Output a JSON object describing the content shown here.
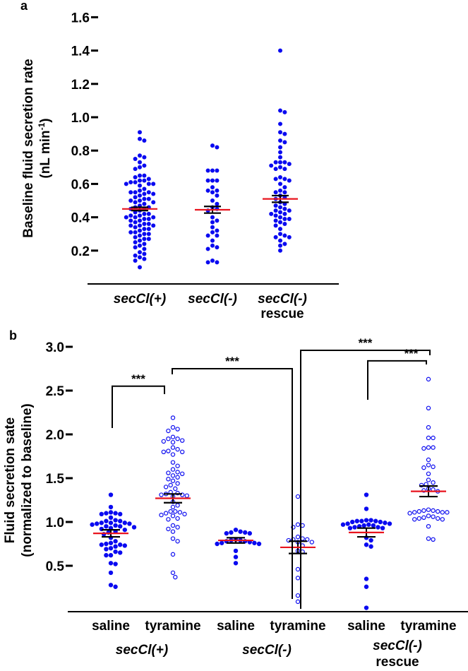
{
  "chart_data": [
    {
      "panel": "a",
      "type": "scatter",
      "subtype": "dot-plot (beeswarm) with mean and SEM",
      "title": "",
      "ylabel_line1": "Baseline fluid secretion rate",
      "ylabel_line2": "(nL min",
      "ylabel_sup": "-1",
      "ylabel_close": ")",
      "ylim": [
        0,
        1.6
      ],
      "yticks": [
        0.2,
        0.4,
        0.6,
        0.8,
        1.0,
        1.2,
        1.4,
        1.6
      ],
      "ytick_labels": [
        "0.2",
        "0.4",
        "0.6",
        "0.8",
        "1.0",
        "1.2",
        "1.4",
        "1.6"
      ],
      "grid": false,
      "marker_color": "#0a0af0",
      "mean_color": "#e8141e",
      "sem_color": "#000000",
      "groups": [
        {
          "label": "secCl(+)",
          "label_line2": "",
          "marker": "filled",
          "mean": 0.45,
          "sem": 0.01,
          "values": [
            0.91,
            0.87,
            0.86,
            0.77,
            0.76,
            0.75,
            0.73,
            0.71,
            0.7,
            0.69,
            0.65,
            0.65,
            0.64,
            0.63,
            0.62,
            0.62,
            0.61,
            0.61,
            0.6,
            0.6,
            0.6,
            0.59,
            0.57,
            0.56,
            0.55,
            0.55,
            0.55,
            0.54,
            0.54,
            0.53,
            0.52,
            0.51,
            0.51,
            0.5,
            0.5,
            0.49,
            0.49,
            0.48,
            0.47,
            0.46,
            0.46,
            0.45,
            0.45,
            0.44,
            0.43,
            0.42,
            0.42,
            0.41,
            0.41,
            0.4,
            0.4,
            0.4,
            0.39,
            0.39,
            0.38,
            0.38,
            0.37,
            0.36,
            0.36,
            0.35,
            0.35,
            0.35,
            0.34,
            0.33,
            0.33,
            0.32,
            0.31,
            0.31,
            0.3,
            0.3,
            0.29,
            0.28,
            0.27,
            0.27,
            0.26,
            0.25,
            0.24,
            0.23,
            0.22,
            0.21,
            0.19,
            0.18,
            0.17,
            0.16,
            0.15,
            0.14,
            0.1
          ]
        },
        {
          "label": "secCl(-)",
          "label_line2": "",
          "marker": "filled",
          "mean": 0.445,
          "sem": 0.02,
          "values": [
            0.83,
            0.82,
            0.68,
            0.68,
            0.68,
            0.62,
            0.62,
            0.62,
            0.58,
            0.56,
            0.56,
            0.55,
            0.53,
            0.5,
            0.48,
            0.45,
            0.46,
            0.44,
            0.4,
            0.38,
            0.37,
            0.34,
            0.32,
            0.31,
            0.29,
            0.29,
            0.26,
            0.23,
            0.22,
            0.21,
            0.14,
            0.13,
            0.13
          ]
        },
        {
          "label": "secCl(-)",
          "label_line2": "rescue",
          "marker": "filled",
          "mean": 0.51,
          "sem": 0.02,
          "values": [
            1.4,
            1.04,
            1.03,
            0.96,
            0.91,
            0.9,
            0.86,
            0.85,
            0.82,
            0.79,
            0.76,
            0.73,
            0.73,
            0.73,
            0.72,
            0.71,
            0.7,
            0.69,
            0.69,
            0.64,
            0.63,
            0.63,
            0.62,
            0.6,
            0.58,
            0.56,
            0.55,
            0.55,
            0.53,
            0.52,
            0.51,
            0.49,
            0.48,
            0.47,
            0.46,
            0.45,
            0.44,
            0.44,
            0.43,
            0.42,
            0.42,
            0.41,
            0.4,
            0.39,
            0.39,
            0.38,
            0.37,
            0.36,
            0.35,
            0.33,
            0.3,
            0.29,
            0.28,
            0.28,
            0.26,
            0.24,
            0.23,
            0.2
          ]
        }
      ]
    },
    {
      "panel": "b",
      "type": "scatter",
      "subtype": "dot-plot (beeswarm) with mean and SEM",
      "title": "",
      "ylabel_line1": "Fluid secretion sate",
      "ylabel_line2": "(normalized to baseline)",
      "ylim": [
        0,
        3.0
      ],
      "yticks": [
        0.5,
        1.0,
        1.5,
        2.0,
        2.5,
        3.0
      ],
      "ytick_labels": [
        "0.5",
        "1.0",
        "1.5",
        "2.0",
        "2.5",
        "3.0"
      ],
      "grid": false,
      "marker_color": "#0a0af0",
      "mean_color": "#e8141e",
      "sem_color": "#000000",
      "groups": [
        {
          "label": "saline",
          "genotype": "secCl(+)",
          "marker": "filled",
          "mean": 0.87,
          "sem": 0.04,
          "values": [
            1.31,
            1.17,
            1.11,
            1.1,
            1.09,
            1.09,
            1.1,
            1.05,
            1.02,
            1.01,
            1.01,
            0.99,
            0.99,
            0.99,
            0.98,
            0.98,
            0.97,
            0.96,
            0.95,
            0.95,
            0.94,
            0.93,
            0.92,
            0.91,
            0.89,
            0.88,
            0.86,
            0.82,
            0.78,
            0.76,
            0.75,
            0.74,
            0.74,
            0.73,
            0.72,
            0.7,
            0.69,
            0.66,
            0.65,
            0.62,
            0.62,
            0.53,
            0.52,
            0.42,
            0.28,
            0.26
          ]
        },
        {
          "label": "tyramine",
          "genotype": "secCl(+)",
          "marker": "open",
          "mean": 1.27,
          "sem": 0.05,
          "values": [
            2.19,
            2.08,
            2.06,
            2.04,
            1.97,
            1.95,
            1.95,
            1.93,
            1.92,
            1.91,
            1.85,
            1.83,
            1.81,
            1.8,
            1.8,
            1.77,
            1.68,
            1.64,
            1.6,
            1.57,
            1.56,
            1.55,
            1.53,
            1.51,
            1.49,
            1.47,
            1.44,
            1.42,
            1.4,
            1.38,
            1.34,
            1.33,
            1.32,
            1.31,
            1.31,
            1.3,
            1.29,
            1.23,
            1.19,
            1.17,
            1.12,
            1.12,
            1.11,
            1.1,
            1.09,
            1.08,
            1.07,
            1.04,
            1.03,
            0.96,
            0.94,
            0.92,
            0.89,
            0.81,
            0.78,
            0.63,
            0.42,
            0.37
          ]
        },
        {
          "label": "saline",
          "genotype": "secCl(-)",
          "marker": "filled",
          "mean": 0.79,
          "sem": 0.03,
          "values": [
            0.91,
            0.89,
            0.88,
            0.88,
            0.87,
            0.87,
            0.8,
            0.79,
            0.79,
            0.78,
            0.78,
            0.77,
            0.76,
            0.76,
            0.75,
            0.75,
            0.67,
            0.6,
            0.53
          ]
        },
        {
          "label": "tyramine",
          "genotype": "secCl(-)",
          "marker": "open",
          "mean": 0.71,
          "sem": 0.07,
          "values": [
            1.29,
            0.97,
            0.96,
            0.94,
            0.83,
            0.81,
            0.8,
            0.8,
            0.79,
            0.77,
            0.77,
            0.73,
            0.67,
            0.66,
            0.46,
            0.36,
            0.16,
            0.09
          ]
        },
        {
          "label": "saline",
          "genotype": "secCl(-) rescue",
          "marker": "filled",
          "mean": 0.88,
          "sem": 0.05,
          "values": [
            1.31,
            1.15,
            1.02,
            1.02,
            1.01,
            1.01,
            1.01,
            1.0,
            1.0,
            0.99,
            0.98,
            0.98,
            0.97,
            0.97,
            0.96,
            0.96,
            0.95,
            0.94,
            0.94,
            0.93,
            0.93,
            0.82,
            0.79,
            0.74,
            0.72,
            0.35,
            0.26,
            0.02
          ]
        },
        {
          "label": "tyramine",
          "genotype": "secCl(-) rescue",
          "marker": "open",
          "mean": 1.35,
          "sem": 0.06,
          "values": [
            2.63,
            2.3,
            2.08,
            1.96,
            1.96,
            1.85,
            1.84,
            1.85,
            1.71,
            1.65,
            1.63,
            1.62,
            1.55,
            1.48,
            1.45,
            1.43,
            1.42,
            1.38,
            1.37,
            1.36,
            1.35,
            1.14,
            1.13,
            1.13,
            1.12,
            1.12,
            1.11,
            1.1,
            1.11,
            1.11,
            1.06,
            1.04,
            1.04,
            1.03,
            1.03,
            1.05,
            1.07,
            0.95,
            0.81,
            0.8
          ]
        }
      ],
      "genotype_labels": [
        {
          "line1": "secCl(+)",
          "line2": ""
        },
        {
          "line1": "secCl(-)",
          "line2": ""
        },
        {
          "line1": "secCl(-)",
          "line2": "rescue"
        }
      ],
      "significance_brackets": [
        {
          "from_group": 0,
          "to_group": 1,
          "label": "***",
          "level": 2.55
        },
        {
          "from_group": 1,
          "to_group": 3,
          "label": "***",
          "level": 2.75
        },
        {
          "from_group": 3,
          "to_group": 5,
          "label": "***",
          "level": 2.96
        },
        {
          "from_group": 4,
          "to_group": 5,
          "label": "***",
          "level": 2.84
        }
      ]
    }
  ],
  "panel_labels": [
    "a",
    "b"
  ]
}
